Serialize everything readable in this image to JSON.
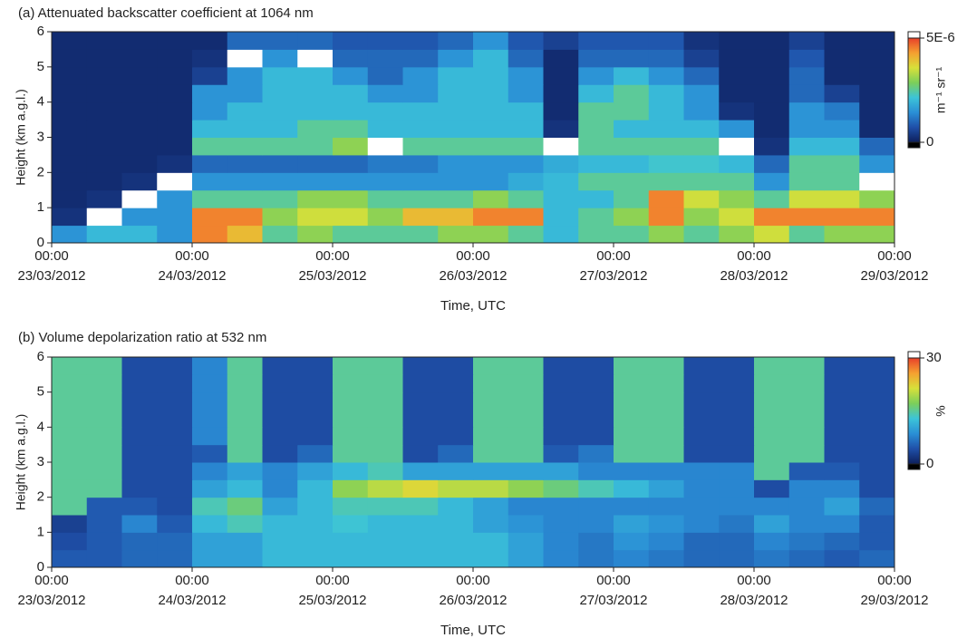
{
  "chart_data": [
    {
      "type": "heatmap",
      "title": "(a) Attenuated backscatter coefficient at 1064 nm",
      "xlabel": "Time, UTC",
      "ylabel": "Height (km a.g.l.)",
      "x": [
        "2012-03-23T03:00",
        "2012-03-23T09:00",
        "2012-03-23T15:00",
        "2012-03-23T21:00",
        "2012-03-24T03:00",
        "2012-03-24T09:00",
        "2012-03-24T15:00",
        "2012-03-24T21:00",
        "2012-03-25T03:00",
        "2012-03-25T09:00",
        "2012-03-25T15:00",
        "2012-03-25T21:00",
        "2012-03-26T03:00",
        "2012-03-26T09:00",
        "2012-03-26T15:00",
        "2012-03-26T21:00",
        "2012-03-27T03:00",
        "2012-03-27T09:00",
        "2012-03-27T15:00",
        "2012-03-27T21:00",
        "2012-03-28T03:00",
        "2012-03-28T09:00",
        "2012-03-28T15:00",
        "2012-03-28T21:00"
      ],
      "y": [
        0.25,
        0.75,
        1.25,
        1.75,
        2.25,
        2.75,
        3.25,
        3.75,
        4.25,
        4.75,
        5.25,
        5.75
      ],
      "values": [
        [
          1.5e-06,
          2e-06,
          2e-06,
          1.5e-06,
          4.5e-06,
          4e-06,
          2.5e-06,
          3e-06,
          2.5e-06,
          2.5e-06,
          2.5e-06,
          3e-06,
          3e-06,
          2.5e-06,
          2e-06,
          2.5e-06,
          2.5e-06,
          3e-06,
          2.5e-06,
          3e-06,
          3.5e-06,
          2.5e-06,
          3e-06,
          3e-06
        ],
        [
          3e-07,
          6e-06,
          1.5e-06,
          1.5e-06,
          4.5e-06,
          4.5e-06,
          3e-06,
          3.5e-06,
          3.5e-06,
          3e-06,
          4e-06,
          4e-06,
          4.5e-06,
          4.5e-06,
          2e-06,
          2.5e-06,
          3e-06,
          4.5e-06,
          3e-06,
          3.5e-06,
          4.5e-06,
          4.5e-06,
          4.5e-06,
          4.5e-06
        ],
        [
          2e-07,
          3e-07,
          6e-06,
          1.5e-06,
          2.5e-06,
          2.5e-06,
          2.5e-06,
          3e-06,
          3e-06,
          2.5e-06,
          2.5e-06,
          2.5e-06,
          3e-06,
          2.5e-06,
          2e-06,
          2e-06,
          2.5e-06,
          4.5e-06,
          3.5e-06,
          3e-06,
          2.5e-06,
          3.5e-06,
          3.5e-06,
          3e-06
        ],
        [
          2e-07,
          2e-07,
          3e-07,
          6e-06,
          1.5e-06,
          1.5e-06,
          1.5e-06,
          1.5e-06,
          1.5e-06,
          1.5e-06,
          1.5e-06,
          1.5e-06,
          1.5e-06,
          1.8e-06,
          2e-06,
          2.5e-06,
          2.5e-06,
          2.5e-06,
          2.5e-06,
          2.5e-06,
          1.5e-06,
          2.5e-06,
          2.5e-06,
          6e-06
        ],
        [
          2e-07,
          2e-07,
          2e-07,
          3e-07,
          1e-06,
          1e-06,
          1e-06,
          1e-06,
          1e-06,
          1.2e-06,
          1.2e-06,
          1.5e-06,
          1.5e-06,
          1.5e-06,
          1.8e-06,
          2e-06,
          2e-06,
          2.2e-06,
          2.2e-06,
          2e-06,
          1e-06,
          2.5e-06,
          2.5e-06,
          1.5e-06
        ],
        [
          2e-07,
          2e-07,
          2e-07,
          2e-07,
          2.5e-06,
          2.5e-06,
          2.5e-06,
          2.5e-06,
          3e-06,
          6e-06,
          2.5e-06,
          2.5e-06,
          2.5e-06,
          2.5e-06,
          6e-06,
          2.5e-06,
          2.5e-06,
          2.5e-06,
          2.5e-06,
          6e-06,
          3e-07,
          2e-06,
          2e-06,
          1e-06
        ],
        [
          2e-07,
          2e-07,
          2e-07,
          2e-07,
          2e-06,
          2e-06,
          2e-06,
          2.5e-06,
          2.5e-06,
          2e-06,
          2e-06,
          2e-06,
          2e-06,
          2e-06,
          3e-07,
          2.5e-06,
          2e-06,
          2e-06,
          2e-06,
          1.5e-06,
          2e-07,
          1.5e-06,
          1.5e-06,
          2e-07
        ],
        [
          2e-07,
          2e-07,
          2e-07,
          2e-07,
          1.5e-06,
          2e-06,
          2e-06,
          2e-06,
          2e-06,
          2e-06,
          2e-06,
          2e-06,
          2e-06,
          2e-06,
          2e-07,
          2.5e-06,
          2.5e-06,
          2e-06,
          1.5e-06,
          3e-07,
          2e-07,
          1.5e-06,
          1.2e-06,
          2e-07
        ],
        [
          2e-07,
          2e-07,
          2e-07,
          2e-07,
          1.5e-06,
          1.5e-06,
          2e-06,
          2e-06,
          2e-06,
          1.5e-06,
          1.5e-06,
          2e-06,
          2e-06,
          1.5e-06,
          2e-07,
          2e-06,
          2.5e-06,
          2e-06,
          1.5e-06,
          2e-07,
          2e-07,
          1e-06,
          5e-07,
          2e-07
        ],
        [
          2e-07,
          2e-07,
          2e-07,
          2e-07,
          5e-07,
          1.5e-06,
          2e-06,
          2e-06,
          1.5e-06,
          1e-06,
          1.5e-06,
          2e-06,
          2e-06,
          1.5e-06,
          2e-07,
          1.5e-06,
          2e-06,
          1.5e-06,
          1e-06,
          2e-07,
          2e-07,
          1e-06,
          2e-07,
          2e-07
        ],
        [
          2e-07,
          2e-07,
          2e-07,
          2e-07,
          3e-07,
          6e-06,
          1.5e-06,
          6e-06,
          1e-06,
          1e-06,
          1e-06,
          1.5e-06,
          2e-06,
          1e-06,
          2e-07,
          1e-06,
          1e-06,
          1e-06,
          5e-07,
          2e-07,
          2e-07,
          8e-07,
          2e-07,
          2e-07
        ],
        [
          2e-07,
          2e-07,
          2e-07,
          2e-07,
          2e-07,
          1e-06,
          1e-06,
          1e-06,
          8e-07,
          8e-07,
          8e-07,
          1e-06,
          1.5e-06,
          8e-07,
          5e-07,
          8e-07,
          8e-07,
          8e-07,
          3e-07,
          2e-07,
          2e-07,
          5e-07,
          2e-07,
          2e-07
        ]
      ],
      "xlim": [
        "2012-03-23T00:00",
        "2012-03-29T00:00"
      ],
      "ylim": [
        0,
        6
      ],
      "xticks": [
        {
          "value": "2012-03-23T00:00",
          "label": [
            "00:00",
            "23/03/2012"
          ]
        },
        {
          "value": "2012-03-24T00:00",
          "label": [
            "00:00",
            "24/03/2012"
          ]
        },
        {
          "value": "2012-03-25T00:00",
          "label": [
            "00:00",
            "25/03/2012"
          ]
        },
        {
          "value": "2012-03-26T00:00",
          "label": [
            "00:00",
            "26/03/2012"
          ]
        },
        {
          "value": "2012-03-27T00:00",
          "label": [
            "00:00",
            "27/03/2012"
          ]
        },
        {
          "value": "2012-03-28T00:00",
          "label": [
            "00:00",
            "28/03/2012"
          ]
        },
        {
          "value": "2012-03-29T00:00",
          "label": [
            "00:00",
            "29/03/2012"
          ]
        }
      ],
      "yticks": [
        0,
        1,
        2,
        3,
        4,
        5,
        6
      ],
      "colorbar": {
        "lim": [
          0,
          5e-06
        ],
        "ticks": [
          0,
          {
            "value": 5e-06,
            "label": "5E-6"
          }
        ],
        "label": "m⁻¹ sr⁻¹"
      },
      "colormap": [
        "#0d1f5c",
        "#1f4fa8",
        "#2a8fd6",
        "#3cc4d8",
        "#7ccf5a",
        "#d8e03a",
        "#f5a030",
        "#e8402a"
      ],
      "over_color": "#ffffff",
      "under_color": "#000000"
    },
    {
      "type": "heatmap",
      "title": "(b) Volume depolarization ratio at 532 nm",
      "xlabel": "Time, UTC",
      "ylabel": "Height (km a.g.l.)",
      "x": [
        "2012-03-23T03:00",
        "2012-03-23T09:00",
        "2012-03-23T15:00",
        "2012-03-23T21:00",
        "2012-03-24T03:00",
        "2012-03-24T09:00",
        "2012-03-24T15:00",
        "2012-03-24T21:00",
        "2012-03-25T03:00",
        "2012-03-25T09:00",
        "2012-03-25T15:00",
        "2012-03-25T21:00",
        "2012-03-26T03:00",
        "2012-03-26T09:00",
        "2012-03-26T15:00",
        "2012-03-26T21:00",
        "2012-03-27T03:00",
        "2012-03-27T09:00",
        "2012-03-27T15:00",
        "2012-03-27T21:00",
        "2012-03-28T03:00",
        "2012-03-28T09:00",
        "2012-03-28T15:00",
        "2012-03-28T21:00"
      ],
      "y": [
        0.25,
        0.75,
        1.25,
        1.75,
        2.25,
        2.75,
        3.25,
        3.75,
        4.25,
        4.75,
        5.25,
        5.75
      ],
      "values": [
        [
          5,
          5,
          6,
          6,
          10,
          10,
          12,
          12,
          12,
          12,
          12,
          12,
          12,
          10,
          8,
          7,
          8,
          7,
          6,
          6,
          7,
          6,
          5,
          6
        ],
        [
          4,
          5,
          6,
          6,
          10,
          10,
          12,
          12,
          12,
          12,
          12,
          12,
          12,
          10,
          8,
          7,
          9,
          8,
          6,
          6,
          8,
          7,
          6,
          5
        ],
        [
          3,
          5,
          8,
          5,
          12,
          14,
          12,
          12,
          13,
          12,
          12,
          12,
          10,
          9,
          8,
          8,
          10,
          9,
          8,
          7,
          10,
          8,
          8,
          5
        ],
        [
          15,
          5,
          5,
          4,
          14,
          16,
          10,
          12,
          14,
          14,
          14,
          12,
          10,
          8,
          8,
          8,
          8,
          8,
          8,
          8,
          8,
          8,
          10,
          6
        ],
        [
          15,
          15,
          4,
          4,
          10,
          12,
          8,
          12,
          18,
          20,
          22,
          20,
          20,
          18,
          16,
          14,
          12,
          10,
          8,
          8,
          4,
          8,
          8,
          4
        ],
        [
          15,
          15,
          4,
          4,
          8,
          10,
          8,
          10,
          12,
          14,
          10,
          10,
          10,
          10,
          10,
          8,
          8,
          8,
          8,
          8,
          15,
          5,
          5,
          4
        ],
        [
          15,
          15,
          4,
          4,
          5,
          15,
          4,
          6,
          15,
          15,
          4,
          6,
          15,
          15,
          5,
          7,
          15,
          15,
          4,
          4,
          15,
          15,
          4,
          4
        ],
        [
          15,
          15,
          4,
          4,
          8,
          15,
          4,
          4,
          15,
          15,
          4,
          4,
          15,
          15,
          4,
          4,
          15,
          15,
          4,
          4,
          15,
          15,
          4,
          4
        ],
        [
          15,
          15,
          4,
          4,
          8,
          15,
          4,
          4,
          15,
          15,
          4,
          4,
          15,
          15,
          4,
          4,
          15,
          15,
          4,
          4,
          15,
          15,
          4,
          4
        ],
        [
          15,
          15,
          4,
          4,
          8,
          15,
          4,
          4,
          15,
          15,
          4,
          4,
          15,
          15,
          4,
          4,
          15,
          15,
          4,
          4,
          15,
          15,
          4,
          4
        ],
        [
          15,
          15,
          4,
          4,
          8,
          15,
          4,
          4,
          15,
          15,
          4,
          4,
          15,
          15,
          4,
          4,
          15,
          15,
          4,
          4,
          15,
          15,
          4,
          4
        ],
        [
          15,
          15,
          4,
          4,
          8,
          15,
          4,
          4,
          15,
          15,
          4,
          4,
          15,
          15,
          4,
          4,
          15,
          15,
          4,
          4,
          15,
          15,
          4,
          4
        ]
      ],
      "xlim": [
        "2012-03-23T00:00",
        "2012-03-29T00:00"
      ],
      "ylim": [
        0,
        6
      ],
      "xticks": [
        {
          "value": "2012-03-23T00:00",
          "label": [
            "00:00",
            "23/03/2012"
          ]
        },
        {
          "value": "2012-03-24T00:00",
          "label": [
            "00:00",
            "24/03/2012"
          ]
        },
        {
          "value": "2012-03-25T00:00",
          "label": [
            "00:00",
            "25/03/2012"
          ]
        },
        {
          "value": "2012-03-26T00:00",
          "label": [
            "00:00",
            "26/03/2012"
          ]
        },
        {
          "value": "2012-03-27T00:00",
          "label": [
            "00:00",
            "27/03/2012"
          ]
        },
        {
          "value": "2012-03-28T00:00",
          "label": [
            "00:00",
            "28/03/2012"
          ]
        },
        {
          "value": "2012-03-29T00:00",
          "label": [
            "00:00",
            "29/03/2012"
          ]
        }
      ],
      "yticks": [
        0,
        1,
        2,
        3,
        4,
        5,
        6
      ],
      "colorbar": {
        "lim": [
          0,
          30
        ],
        "ticks": [
          0,
          30
        ],
        "label": "%"
      },
      "colormap": [
        "#0d1f5c",
        "#1f4fa8",
        "#2a8fd6",
        "#3cc4d8",
        "#7ccf5a",
        "#d8e03a",
        "#f5a030",
        "#e8402a"
      ],
      "over_color": "#ffffff",
      "under_color": "#000000"
    }
  ]
}
